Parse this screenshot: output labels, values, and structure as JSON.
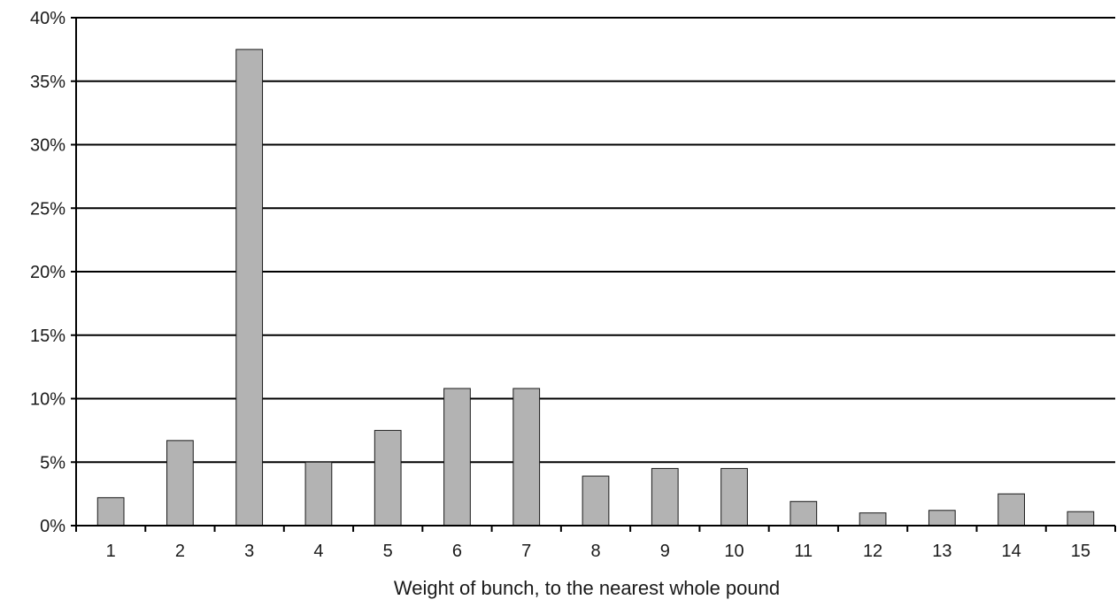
{
  "chart_data": {
    "type": "bar",
    "title": "",
    "xlabel": "Weight of bunch, to the nearest whole pound",
    "ylabel": "",
    "categories": [
      "1",
      "2",
      "3",
      "4",
      "5",
      "6",
      "7",
      "8",
      "9",
      "10",
      "11",
      "12",
      "13",
      "14",
      "15"
    ],
    "values": [
      2.2,
      6.7,
      37.5,
      5.0,
      7.5,
      10.8,
      10.8,
      3.9,
      4.5,
      4.5,
      1.9,
      1.0,
      1.2,
      2.5,
      1.1
    ],
    "ylim": [
      0,
      40
    ],
    "yticks": [
      0,
      5,
      10,
      15,
      20,
      25,
      30,
      35,
      40
    ],
    "ytick_labels": [
      "0%",
      "5%",
      "10%",
      "15%",
      "20%",
      "25%",
      "30%",
      "35%",
      "40%"
    ],
    "grid": true,
    "legend": "none",
    "colors": {
      "bar_fill": "#b3b3b3",
      "bar_stroke": "#1a1a1a",
      "grid": "#000000",
      "axis": "#000000"
    }
  }
}
